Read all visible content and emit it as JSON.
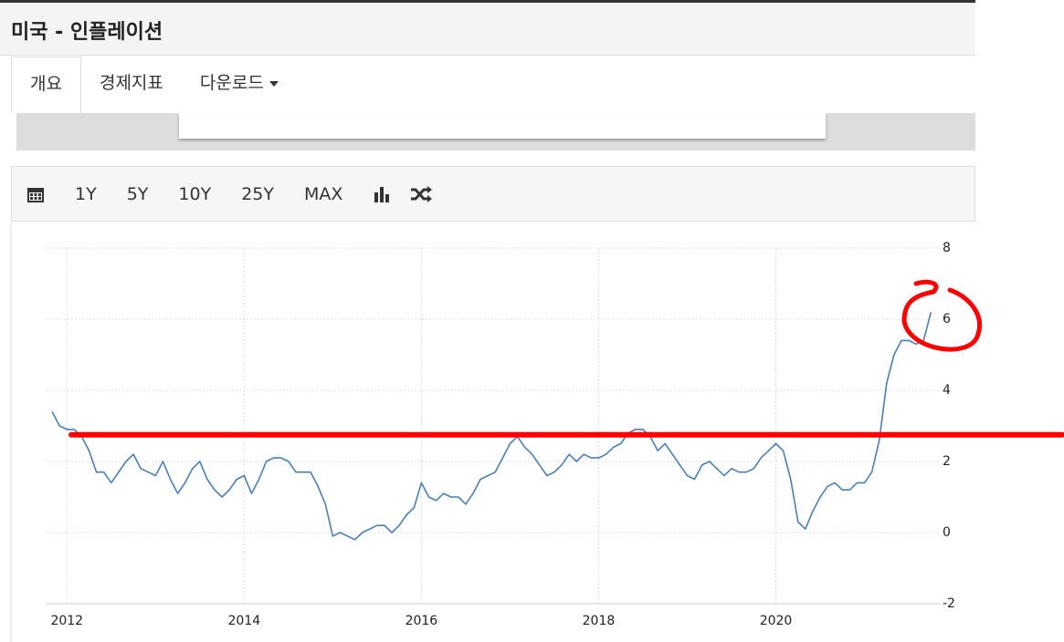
{
  "header": {
    "title": "미국 - 인플레이션"
  },
  "nav": {
    "tabs": [
      "개요",
      "경제지표",
      "다운로드"
    ]
  },
  "toolbar": {
    "ranges": [
      "1Y",
      "5Y",
      "10Y",
      "25Y",
      "MAX"
    ]
  },
  "chart_data": {
    "type": "line",
    "color": "#4a7fb5",
    "grid": true,
    "xlim": [
      2011.76,
      2021.86
    ],
    "xticks": [
      2012,
      2014,
      2016,
      2018,
      2020
    ],
    "ylim": [
      -2,
      8
    ],
    "yticks": [
      -2,
      0,
      2,
      4,
      6,
      8
    ],
    "reference_line": {
      "value": 2.75,
      "color": "#ff0000"
    },
    "x": [
      2011.833,
      2011.917,
      2012,
      2012.083,
      2012.167,
      2012.25,
      2012.333,
      2012.417,
      2012.5,
      2012.583,
      2012.667,
      2012.75,
      2012.833,
      2012.917,
      2013,
      2013.083,
      2013.167,
      2013.25,
      2013.333,
      2013.417,
      2013.5,
      2013.583,
      2013.667,
      2013.75,
      2013.833,
      2013.917,
      2014,
      2014.083,
      2014.167,
      2014.25,
      2014.333,
      2014.417,
      2014.5,
      2014.583,
      2014.667,
      2014.75,
      2014.833,
      2014.917,
      2015,
      2015.083,
      2015.167,
      2015.25,
      2015.333,
      2015.417,
      2015.5,
      2015.583,
      2015.667,
      2015.75,
      2015.833,
      2015.917,
      2016,
      2016.083,
      2016.167,
      2016.25,
      2016.333,
      2016.417,
      2016.5,
      2016.583,
      2016.667,
      2016.75,
      2016.833,
      2016.917,
      2017,
      2017.083,
      2017.167,
      2017.25,
      2017.333,
      2017.417,
      2017.5,
      2017.583,
      2017.667,
      2017.75,
      2017.833,
      2017.917,
      2018,
      2018.083,
      2018.167,
      2018.25,
      2018.333,
      2018.417,
      2018.5,
      2018.583,
      2018.667,
      2018.75,
      2018.833,
      2018.917,
      2019,
      2019.083,
      2019.167,
      2019.25,
      2019.333,
      2019.417,
      2019.5,
      2019.583,
      2019.667,
      2019.75,
      2019.833,
      2019.917,
      2020,
      2020.083,
      2020.167,
      2020.25,
      2020.333,
      2020.417,
      2020.5,
      2020.583,
      2020.667,
      2020.75,
      2020.833,
      2020.917,
      2021,
      2021.083,
      2021.167,
      2021.25,
      2021.333,
      2021.417,
      2021.5,
      2021.583,
      2021.667,
      2021.75
    ],
    "values": [
      3.4,
      3.0,
      2.9,
      2.9,
      2.7,
      2.3,
      1.7,
      1.7,
      1.4,
      1.7,
      2.0,
      2.2,
      1.8,
      1.7,
      1.6,
      2.0,
      1.5,
      1.1,
      1.4,
      1.8,
      2.0,
      1.5,
      1.2,
      1.0,
      1.2,
      1.5,
      1.6,
      1.1,
      1.5,
      2.0,
      2.1,
      2.1,
      2.0,
      1.7,
      1.7,
      1.7,
      1.3,
      0.8,
      -0.1,
      0.0,
      -0.1,
      -0.2,
      0.0,
      0.1,
      0.2,
      0.2,
      0.0,
      0.2,
      0.5,
      0.7,
      1.4,
      1.0,
      0.9,
      1.1,
      1.0,
      1.0,
      0.8,
      1.1,
      1.5,
      1.6,
      1.7,
      2.1,
      2.5,
      2.7,
      2.4,
      2.2,
      1.9,
      1.6,
      1.7,
      1.9,
      2.2,
      2.0,
      2.2,
      2.1,
      2.1,
      2.2,
      2.4,
      2.5,
      2.8,
      2.9,
      2.9,
      2.7,
      2.3,
      2.5,
      2.2,
      1.9,
      1.6,
      1.5,
      1.9,
      2.0,
      1.8,
      1.6,
      1.8,
      1.7,
      1.7,
      1.8,
      2.1,
      2.3,
      2.5,
      2.3,
      1.5,
      0.3,
      0.1,
      0.6,
      1.0,
      1.3,
      1.4,
      1.2,
      1.2,
      1.4,
      1.4,
      1.7,
      2.6,
      4.2,
      5.0,
      5.4,
      5.4,
      5.3,
      5.4,
      6.2
    ]
  }
}
